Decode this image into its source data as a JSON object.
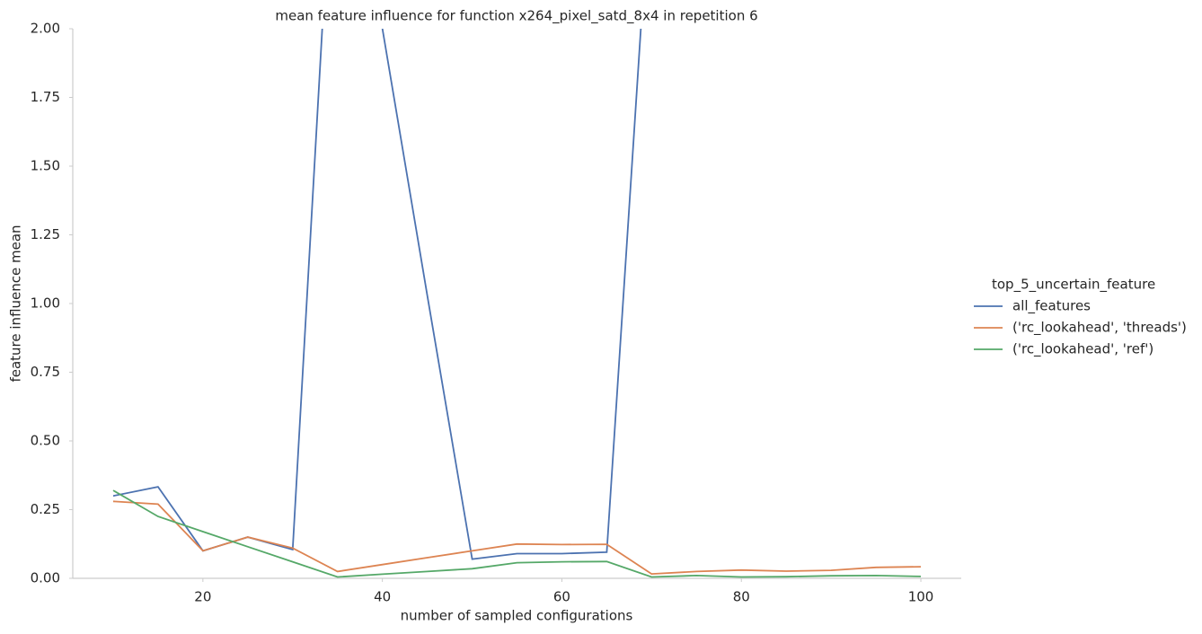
{
  "chart_data": {
    "type": "line",
    "title": "mean feature influence for function x264_pixel_satd_8x4 in repetition 6",
    "x_label": "number of sampled configurations",
    "y_label": "feature influence mean",
    "legend_title": "top_5_uncertain_feature",
    "x": [
      10,
      15,
      20,
      25,
      30,
      35,
      40,
      45,
      50,
      55,
      60,
      65,
      70,
      75,
      80,
      85,
      90,
      95,
      100
    ],
    "series": [
      {
        "name": "all_features",
        "color": "#4c72b0",
        "values": [
          0.3,
          0.333,
          0.1,
          0.15,
          0.105,
          2.98,
          2.0,
          1.03,
          0.07,
          0.09,
          0.09,
          0.095,
          2.6,
          null,
          null,
          null,
          null,
          null,
          null
        ]
      },
      {
        "name": "('rc_lookahead', 'threads')",
        "color": "#dd8452",
        "values": [
          0.28,
          0.27,
          0.1,
          0.15,
          0.11,
          0.025,
          0.05,
          0.075,
          0.1,
          0.125,
          0.123,
          0.124,
          0.016,
          0.025,
          0.03,
          0.026,
          0.029,
          0.04,
          0.042
        ]
      },
      {
        "name": "('rc_lookahead', 'ref')",
        "color": "#55a868",
        "values": [
          0.32,
          0.225,
          0.17,
          0.115,
          0.06,
          0.005,
          0.015,
          0.025,
          0.035,
          0.057,
          0.06,
          0.061,
          0.005,
          0.01,
          0.005,
          0.006,
          0.009,
          0.01,
          0.007
        ]
      }
    ],
    "xlim": [
      5.5,
      104.5
    ],
    "xticks": [
      20,
      40,
      60,
      80,
      100
    ],
    "ylim": [
      0,
      2
    ],
    "yticks": [
      {
        "value": 0,
        "label": "0.00"
      },
      {
        "value": 0.25,
        "label": "0.25"
      },
      {
        "value": 0.5,
        "label": "0.50"
      },
      {
        "value": 0.75,
        "label": "0.75"
      },
      {
        "value": 1,
        "label": "1.00"
      },
      {
        "value": 1.25,
        "label": "1.25"
      },
      {
        "value": 1.5,
        "label": "1.50"
      },
      {
        "value": 1.75,
        "label": "1.75"
      },
      {
        "value": 2,
        "label": "2.00"
      }
    ],
    "grid": false,
    "legend": "right"
  }
}
